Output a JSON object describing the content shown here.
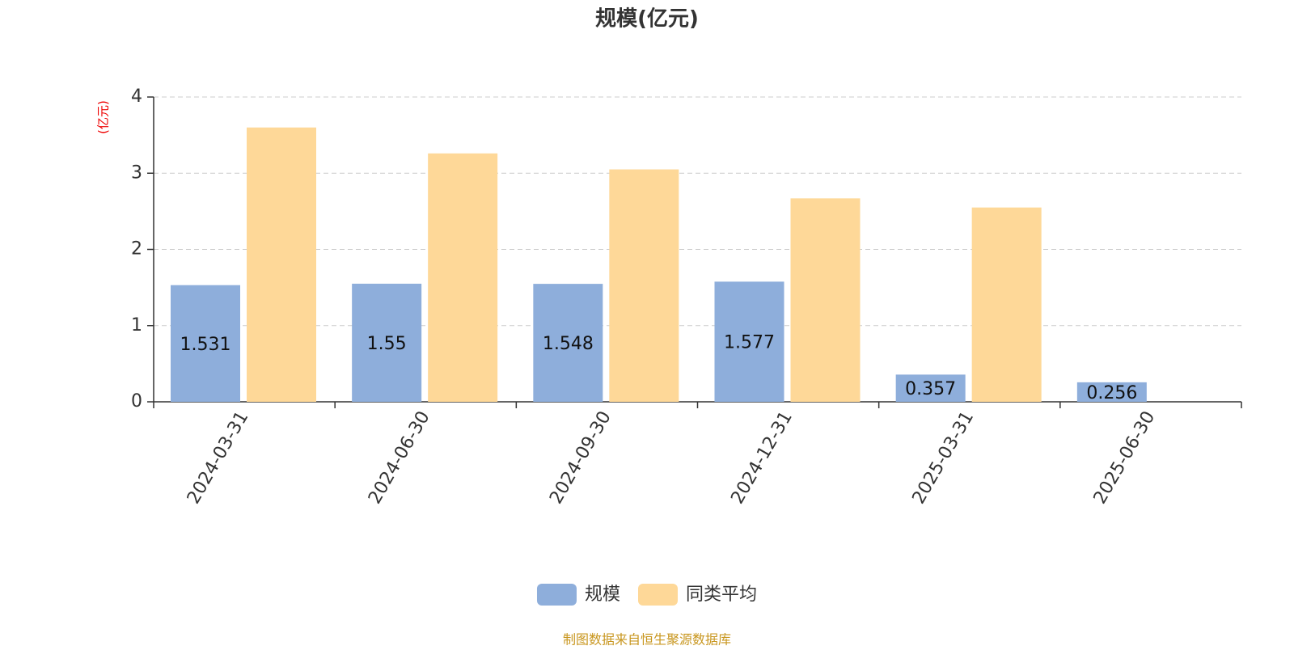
{
  "chart_data": {
    "type": "bar",
    "title": "规模(亿元)",
    "y_unit_label": "(亿元)",
    "categories": [
      "2024-03-31",
      "2024-06-30",
      "2024-09-30",
      "2024-12-31",
      "2025-03-31",
      "2025-06-30"
    ],
    "series": [
      {
        "name": "规模",
        "color": "#8eaedb",
        "values": [
          1.531,
          1.55,
          1.548,
          1.577,
          0.357,
          0.256
        ]
      },
      {
        "name": "同类平均",
        "color": "#fed898",
        "values": [
          3.6,
          3.26,
          3.05,
          2.67,
          2.55,
          null
        ]
      }
    ],
    "show_value_labels_for_series": [
      0
    ],
    "ylim": [
      0,
      4
    ],
    "yticks": [
      0,
      1,
      2,
      3,
      4
    ],
    "grid": true,
    "source": "制图数据来自恒生聚源数据库"
  }
}
